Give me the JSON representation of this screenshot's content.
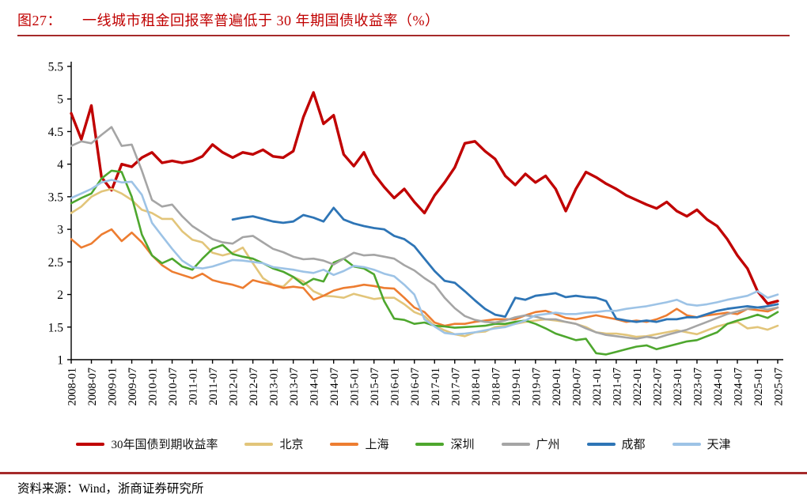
{
  "figure": {
    "label": "图27：",
    "title": "一线城市租金回报率普遍低于 30 年期国债收益率（%）"
  },
  "source": {
    "label": "资料来源：",
    "text": "Wind，浙商证券研究所"
  },
  "style": {
    "title_color": "#c00000",
    "rule_color": "#a52a2a",
    "axis_color": "#000000"
  },
  "chart_data": {
    "type": "line",
    "title": "一线城市租金回报率普遍低于 30 年期国债收益率（%）",
    "xlabel": "",
    "ylabel": "",
    "ylim": [
      1,
      5.5
    ],
    "ytick_labels": [
      "1",
      "1.5",
      "2",
      "2.5",
      "3",
      "3.5",
      "4",
      "4.5",
      "5",
      "5.5"
    ],
    "grid": false,
    "legend_position": "bottom",
    "x_months_start": "2008-01",
    "x_months_end": "2025-07",
    "x_tick_labels": [
      "2008-01",
      "2008-07",
      "2009-01",
      "2009-07",
      "2010-01",
      "2010-07",
      "2011-01",
      "2011-07",
      "2012-01",
      "2012-07",
      "2013-01",
      "2013-07",
      "2014-01",
      "2014-07",
      "2015-01",
      "2015-07",
      "2016-01",
      "2016-07",
      "2017-01",
      "2017-07",
      "2018-01",
      "2018-07",
      "2019-01",
      "2019-07",
      "2020-01",
      "2020-07",
      "2021-01",
      "2021-07",
      "2022-01",
      "2022-07",
      "2023-01",
      "2023-07",
      "2024-01",
      "2024-07",
      "2025-01",
      "2025-07"
    ],
    "sample_interval_months": 3,
    "series": [
      {
        "name": "30年国债到期收益率",
        "color": "#c00000",
        "width": 3.4,
        "values": [
          4.78,
          4.38,
          4.9,
          3.8,
          3.6,
          4.0,
          3.96,
          4.1,
          4.18,
          4.02,
          4.05,
          4.02,
          4.05,
          4.12,
          4.3,
          4.18,
          4.1,
          4.18,
          4.15,
          4.22,
          4.12,
          4.1,
          4.2,
          4.72,
          5.1,
          4.62,
          4.75,
          4.15,
          3.97,
          4.18,
          3.85,
          3.65,
          3.48,
          3.62,
          3.42,
          3.25,
          3.52,
          3.72,
          3.95,
          4.32,
          4.35,
          4.2,
          4.08,
          3.82,
          3.68,
          3.85,
          3.72,
          3.82,
          3.62,
          3.28,
          3.62,
          3.88,
          3.8,
          3.7,
          3.62,
          3.52,
          3.45,
          3.38,
          3.32,
          3.42,
          3.28,
          3.2,
          3.3,
          3.15,
          3.05,
          2.85,
          2.6,
          2.4,
          2.05,
          1.86,
          1.9
        ]
      },
      {
        "name": "北京",
        "color": "#e2c57a",
        "width": 2.6,
        "values": [
          3.25,
          3.35,
          3.5,
          3.58,
          3.62,
          3.55,
          3.45,
          3.3,
          3.25,
          3.16,
          3.16,
          2.97,
          2.84,
          2.8,
          2.64,
          2.6,
          2.64,
          2.72,
          2.48,
          2.25,
          2.15,
          2.12,
          2.27,
          2.2,
          2.05,
          1.98,
          1.97,
          1.95,
          2.01,
          1.97,
          1.93,
          1.95,
          1.95,
          1.85,
          1.73,
          1.67,
          1.52,
          1.45,
          1.39,
          1.36,
          1.42,
          1.43,
          1.5,
          1.52,
          1.55,
          1.58,
          1.6,
          1.62,
          1.6,
          1.58,
          1.55,
          1.5,
          1.42,
          1.4,
          1.4,
          1.38,
          1.35,
          1.36,
          1.39,
          1.42,
          1.45,
          1.42,
          1.39,
          1.45,
          1.51,
          1.55,
          1.58,
          1.48,
          1.5,
          1.46,
          1.52
        ]
      },
      {
        "name": "上海",
        "color": "#ed7d31",
        "width": 2.6,
        "values": [
          2.85,
          2.72,
          2.78,
          2.92,
          3.0,
          2.82,
          2.95,
          2.8,
          2.6,
          2.45,
          2.35,
          2.3,
          2.25,
          2.32,
          2.22,
          2.18,
          2.15,
          2.1,
          2.22,
          2.18,
          2.15,
          2.1,
          2.12,
          2.1,
          1.92,
          1.98,
          2.06,
          2.1,
          2.12,
          2.15,
          2.13,
          2.1,
          2.09,
          1.95,
          1.8,
          1.73,
          1.57,
          1.52,
          1.55,
          1.55,
          1.58,
          1.6,
          1.62,
          1.62,
          1.62,
          1.68,
          1.73,
          1.75,
          1.7,
          1.64,
          1.62,
          1.65,
          1.68,
          1.65,
          1.62,
          1.58,
          1.6,
          1.58,
          1.62,
          1.68,
          1.78,
          1.68,
          1.65,
          1.68,
          1.7,
          1.72,
          1.7,
          1.78,
          1.76,
          1.74,
          1.8
        ]
      },
      {
        "name": "深圳",
        "color": "#4ea72e",
        "width": 2.6,
        "values": [
          3.4,
          3.48,
          3.55,
          3.78,
          3.9,
          3.88,
          3.5,
          2.92,
          2.6,
          2.48,
          2.55,
          2.43,
          2.38,
          2.55,
          2.7,
          2.76,
          2.62,
          2.58,
          2.55,
          2.48,
          2.4,
          2.35,
          2.27,
          2.15,
          2.24,
          2.2,
          2.49,
          2.55,
          2.43,
          2.4,
          2.31,
          1.9,
          1.63,
          1.61,
          1.55,
          1.57,
          1.52,
          1.51,
          1.49,
          1.5,
          1.51,
          1.52,
          1.55,
          1.55,
          1.58,
          1.6,
          1.55,
          1.48,
          1.4,
          1.35,
          1.3,
          1.32,
          1.1,
          1.08,
          1.12,
          1.16,
          1.2,
          1.22,
          1.16,
          1.2,
          1.24,
          1.28,
          1.3,
          1.36,
          1.42,
          1.55,
          1.6,
          1.64,
          1.69,
          1.64,
          1.73
        ]
      },
      {
        "name": "广州",
        "color": "#a5a5a5",
        "width": 2.6,
        "values": [
          4.28,
          4.35,
          4.32,
          4.45,
          4.57,
          4.28,
          4.3,
          3.9,
          3.45,
          3.35,
          3.38,
          3.2,
          3.05,
          2.95,
          2.85,
          2.8,
          2.78,
          2.88,
          2.9,
          2.8,
          2.7,
          2.65,
          2.58,
          2.54,
          2.55,
          2.52,
          2.46,
          2.55,
          2.64,
          2.6,
          2.61,
          2.58,
          2.55,
          2.45,
          2.37,
          2.25,
          2.15,
          1.95,
          1.79,
          1.67,
          1.61,
          1.58,
          1.57,
          1.6,
          1.65,
          1.68,
          1.66,
          1.62,
          1.62,
          1.58,
          1.55,
          1.48,
          1.42,
          1.38,
          1.36,
          1.34,
          1.32,
          1.35,
          1.33,
          1.38,
          1.42,
          1.46,
          1.52,
          1.58,
          1.64,
          1.7,
          1.74,
          1.78,
          1.8,
          1.77,
          1.8
        ]
      },
      {
        "name": "成都",
        "color": "#2e75b6",
        "width": 2.8,
        "values": [
          null,
          null,
          null,
          null,
          null,
          null,
          null,
          null,
          null,
          null,
          null,
          null,
          null,
          null,
          null,
          null,
          3.15,
          3.18,
          3.2,
          3.16,
          3.12,
          3.1,
          3.12,
          3.22,
          3.18,
          3.12,
          3.33,
          3.15,
          3.09,
          3.05,
          3.02,
          3.0,
          2.9,
          2.85,
          2.74,
          2.55,
          2.36,
          2.21,
          2.18,
          2.05,
          1.91,
          1.78,
          1.69,
          1.66,
          1.95,
          1.92,
          1.98,
          2.0,
          2.02,
          1.96,
          1.98,
          1.96,
          1.95,
          1.9,
          1.63,
          1.6,
          1.58,
          1.6,
          1.58,
          1.62,
          1.62,
          1.65,
          1.65,
          1.7,
          1.75,
          1.78,
          1.8,
          1.82,
          1.8,
          1.82,
          1.85
        ]
      },
      {
        "name": "天津",
        "color": "#9dc3e6",
        "width": 2.6,
        "values": [
          3.48,
          3.55,
          3.62,
          3.72,
          3.76,
          3.72,
          3.73,
          3.53,
          3.1,
          2.9,
          2.7,
          2.52,
          2.42,
          2.4,
          2.43,
          2.48,
          2.53,
          2.52,
          2.5,
          2.48,
          2.42,
          2.4,
          2.38,
          2.35,
          2.33,
          2.38,
          2.3,
          2.36,
          2.44,
          2.42,
          2.38,
          2.32,
          2.28,
          2.15,
          2.0,
          1.62,
          1.51,
          1.41,
          1.39,
          1.4,
          1.42,
          1.45,
          1.48,
          1.5,
          1.55,
          1.6,
          1.68,
          1.7,
          1.72,
          1.7,
          1.7,
          1.72,
          1.73,
          1.75,
          1.75,
          1.78,
          1.8,
          1.82,
          1.85,
          1.88,
          1.92,
          1.85,
          1.83,
          1.85,
          1.88,
          1.92,
          1.95,
          1.98,
          2.05,
          1.95,
          2.0
        ]
      }
    ]
  }
}
